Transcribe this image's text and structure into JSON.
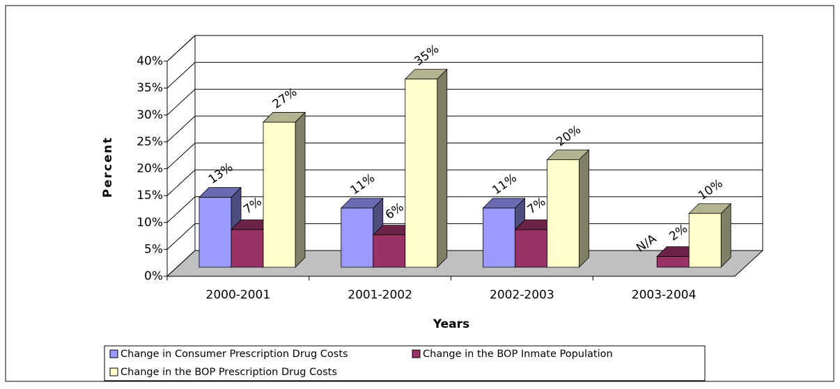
{
  "chart_data": {
    "type": "bar3d",
    "x_label": "Years",
    "y_label": "Percent",
    "categories": [
      "2000-2001",
      "2001-2002",
      "2002-2003",
      "2003-2004"
    ],
    "series": [
      {
        "name": "Change in Consumer Prescription Drug Costs",
        "color": "#9999ff",
        "values": [
          13,
          11,
          11,
          null
        ],
        "value_labels": [
          "13%",
          "11%",
          "11%",
          "N/A"
        ]
      },
      {
        "name": "Change in the BOP Inmate Population",
        "color": "#993366",
        "values": [
          7,
          6,
          7,
          2
        ],
        "value_labels": [
          "7%",
          "6%",
          "7%",
          "2%"
        ]
      },
      {
        "name": "Change in the BOP Prescription Drug Costs",
        "color": "#ffffcc",
        "values": [
          27,
          35,
          20,
          10
        ],
        "value_labels": [
          "27%",
          "35%",
          "20%",
          "10%"
        ]
      }
    ],
    "ylim": [
      0,
      40
    ],
    "yticks": [
      {
        "value": 0,
        "label": "0%"
      },
      {
        "value": 5,
        "label": "5%"
      },
      {
        "value": 10,
        "label": "10%"
      },
      {
        "value": 15,
        "label": "15%"
      },
      {
        "value": 20,
        "label": "20%"
      },
      {
        "value": 25,
        "label": "25%"
      },
      {
        "value": 30,
        "label": "30%"
      },
      {
        "value": 35,
        "label": "35%"
      },
      {
        "value": 40,
        "label": "40%"
      }
    ],
    "grid": true,
    "legend": "bottom"
  }
}
